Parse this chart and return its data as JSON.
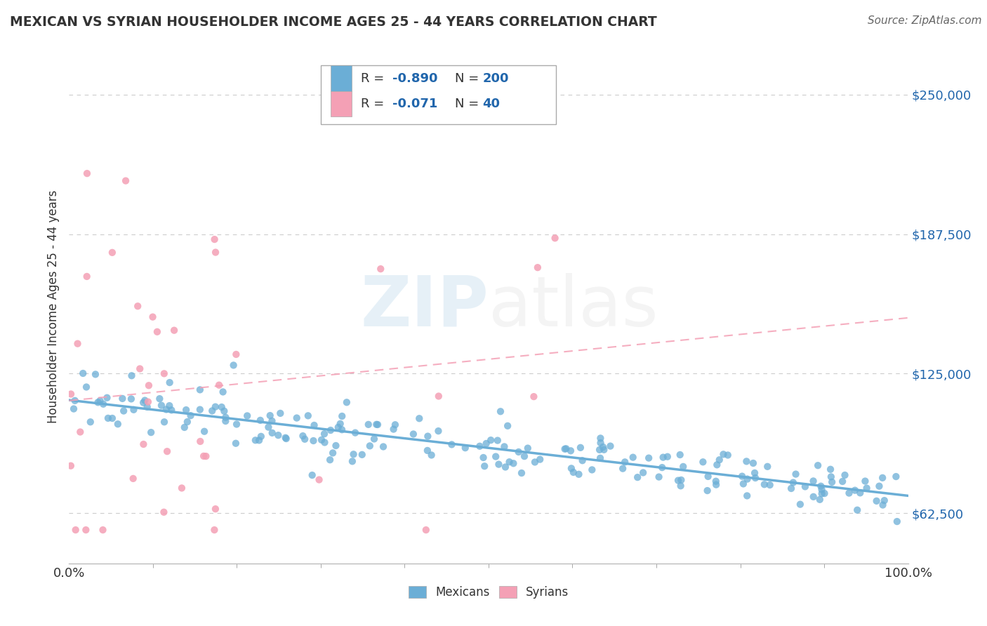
{
  "title": "MEXICAN VS SYRIAN HOUSEHOLDER INCOME AGES 25 - 44 YEARS CORRELATION CHART",
  "source": "Source: ZipAtlas.com",
  "ylabel": "Householder Income Ages 25 - 44 years",
  "x_min": 0.0,
  "x_max": 100.0,
  "y_min": 40000,
  "y_max": 270000,
  "y_ticks": [
    62500,
    125000,
    187500,
    250000
  ],
  "y_tick_labels": [
    "$62,500",
    "$125,000",
    "$187,500",
    "$250,000"
  ],
  "x_tick_labels": [
    "0.0%",
    "100.0%"
  ],
  "mexican_color": "#6baed6",
  "syrian_color": "#f4a0b5",
  "mexican_R": -0.89,
  "mexican_N": 200,
  "syrian_R": -0.071,
  "syrian_N": 40,
  "background_color": "#ffffff",
  "grid_color": "#cccccc",
  "title_color": "#333333",
  "legend_label_mexican": "Mexicans",
  "legend_label_syrian": "Syrians",
  "r_label_color": "#2166ac",
  "text_color": "#333333",
  "source_color": "#666666"
}
